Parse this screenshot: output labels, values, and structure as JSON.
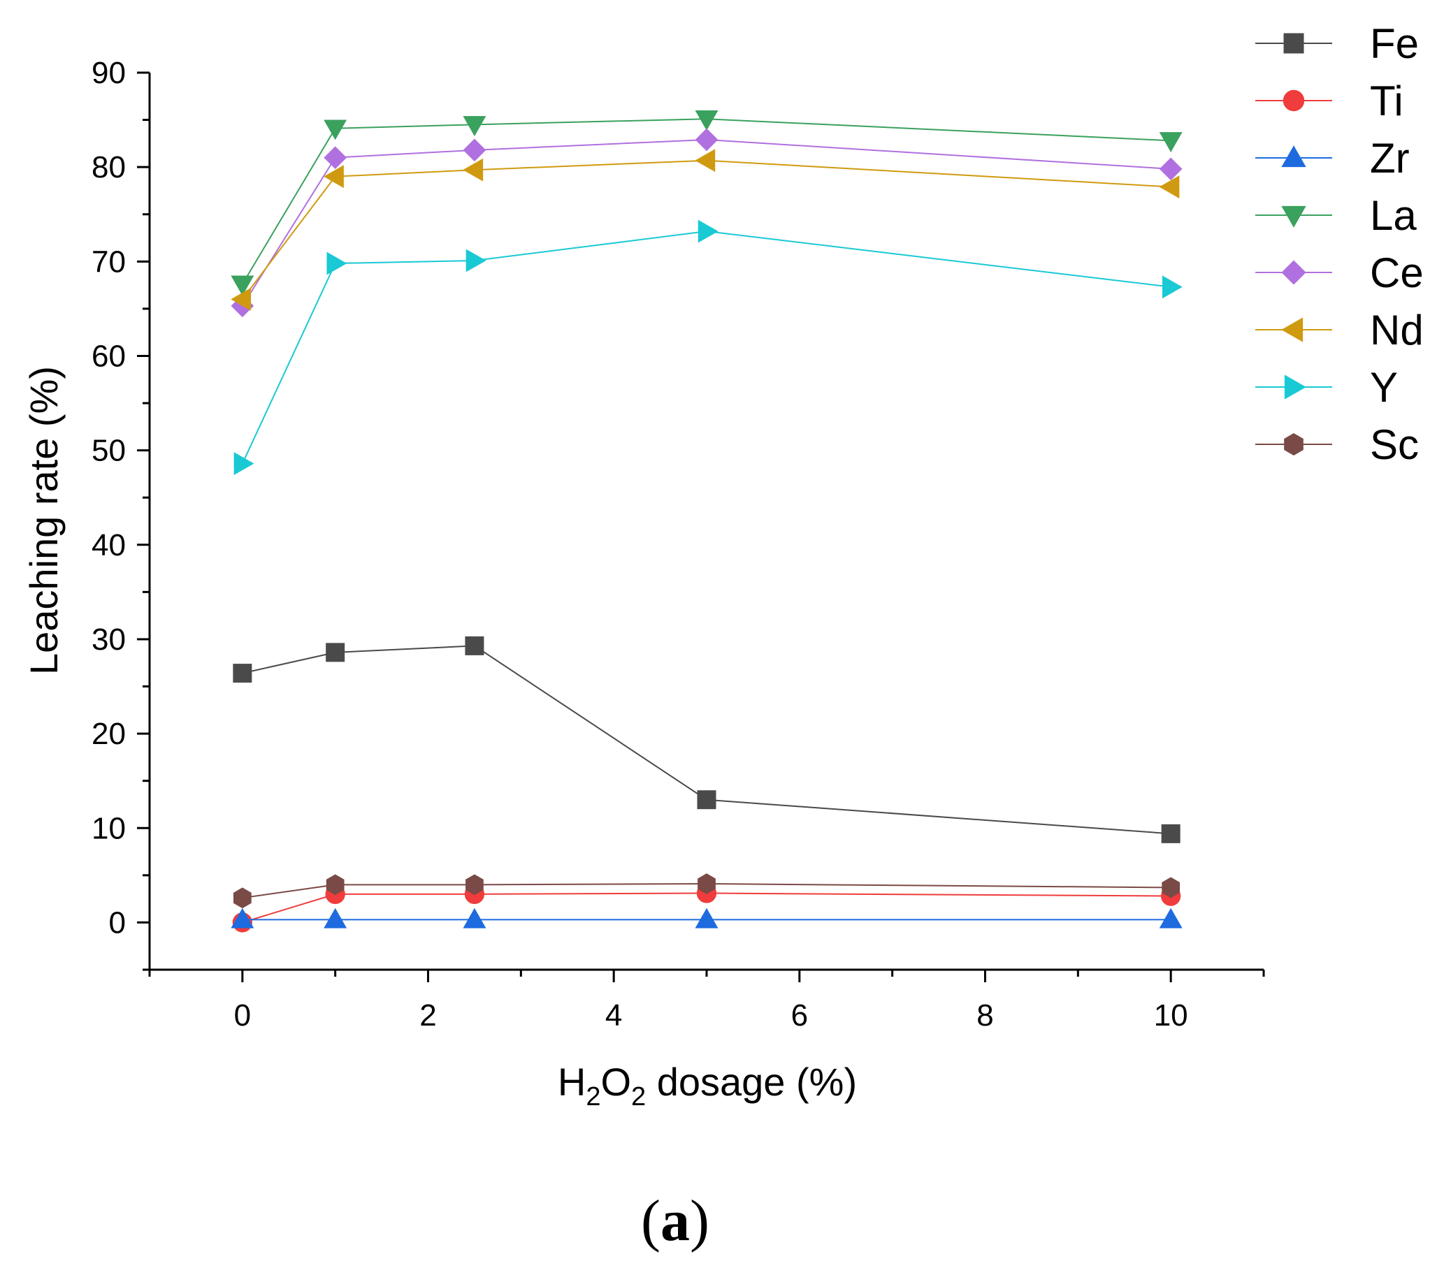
{
  "chart_data": {
    "type": "line",
    "title": "",
    "xlabel": "H2O2 dosage (%)",
    "xlabel_parts": {
      "a": "H",
      "b": "2",
      "c": "O",
      "d": "2",
      "e": " dosage (%)"
    },
    "ylabel": "Leaching rate (%)",
    "xlim": [
      -1,
      11
    ],
    "ylim": [
      -5,
      90
    ],
    "xticks": [
      0,
      2,
      4,
      6,
      8,
      10
    ],
    "yticks": [
      0,
      10,
      20,
      30,
      40,
      50,
      60,
      70,
      80,
      90
    ],
    "x": [
      0,
      1,
      2.5,
      5,
      10
    ],
    "legend_position": "top-right",
    "panel_label": {
      "open": "(",
      "letter": "a",
      "close": ")"
    },
    "series": [
      {
        "name": "Fe",
        "color": "#4a4a4a",
        "marker": "square",
        "values": [
          26.4,
          28.6,
          29.3,
          13.0,
          9.4
        ]
      },
      {
        "name": "Ti",
        "color": "#f03c3c",
        "marker": "circle",
        "values": [
          0.0,
          3.0,
          3.0,
          3.1,
          2.8
        ]
      },
      {
        "name": "Zr",
        "color": "#1e6be0",
        "marker": "triangle-up",
        "values": [
          0.3,
          0.3,
          0.3,
          0.3,
          0.3
        ]
      },
      {
        "name": "La",
        "color": "#3aa15e",
        "marker": "triangle-down",
        "values": [
          67.6,
          84.1,
          84.5,
          85.1,
          82.8
        ]
      },
      {
        "name": "Ce",
        "color": "#b070e0",
        "marker": "diamond",
        "values": [
          65.3,
          81.0,
          81.8,
          82.9,
          79.8
        ]
      },
      {
        "name": "Nd",
        "color": "#d09a10",
        "marker": "triangle-left",
        "values": [
          66.0,
          79.0,
          79.7,
          80.7,
          77.9
        ]
      },
      {
        "name": "Y",
        "color": "#19c9d4",
        "marker": "triangle-right",
        "values": [
          48.6,
          69.8,
          70.1,
          73.2,
          67.3
        ]
      },
      {
        "name": "Sc",
        "color": "#7a4a46",
        "marker": "hexagon",
        "values": [
          2.6,
          4.0,
          4.0,
          4.1,
          3.7
        ]
      }
    ]
  }
}
